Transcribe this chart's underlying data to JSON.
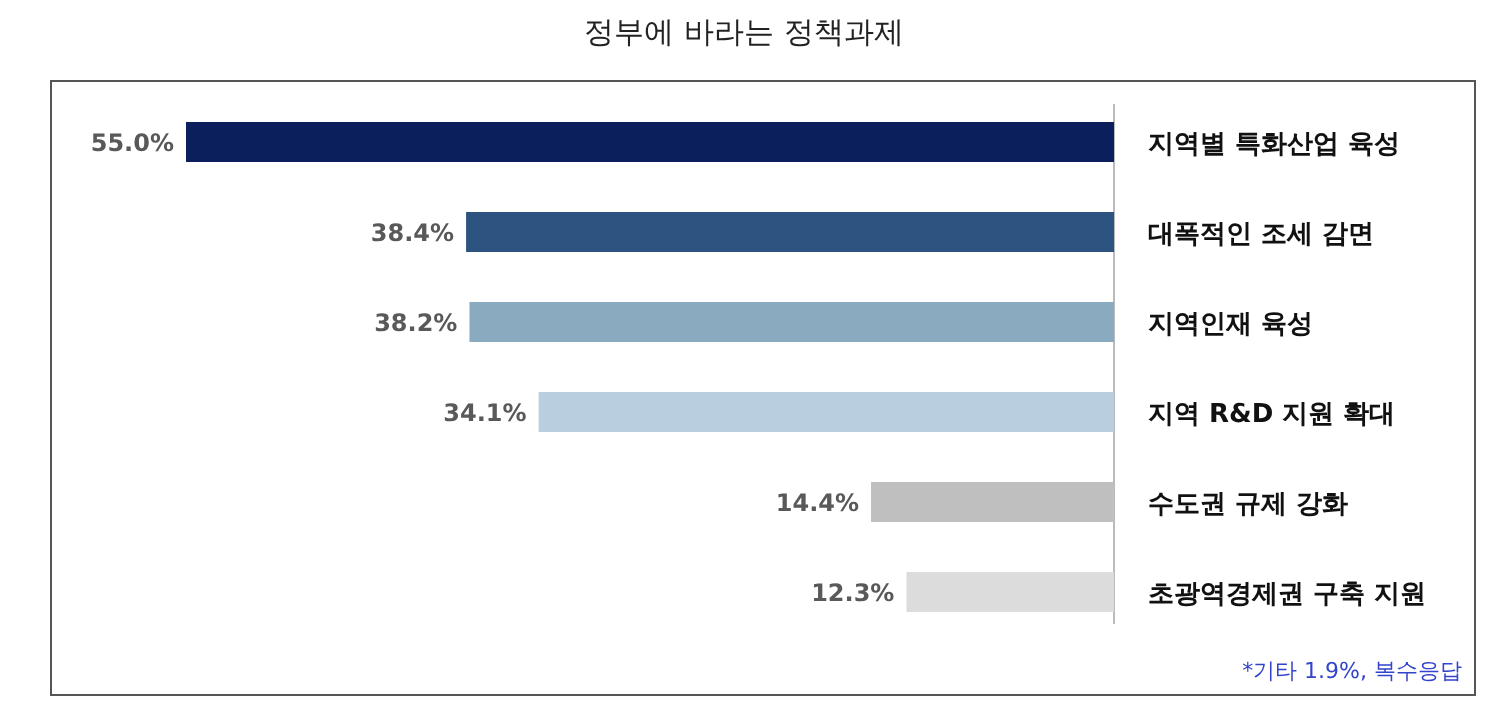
{
  "chart_data": {
    "type": "bar",
    "orientation": "horizontal",
    "title": "정부에 바라는 정책과제",
    "categories": [
      "지역별 특화산업 육성",
      "대폭적인 조세 감면",
      "지역인재 육성",
      "지역 R&D 지원 확대",
      "수도권 규제 강화",
      "초광역경제권 구축 지원"
    ],
    "values": [
      55.0,
      38.4,
      38.2,
      34.1,
      14.4,
      12.3
    ],
    "value_labels": [
      "55.0%",
      "38.4%",
      "38.2%",
      "34.1%",
      "14.4%",
      "12.3%"
    ],
    "colors": [
      "#0b1f5c",
      "#2d5380",
      "#8aaabf",
      "#b9cede",
      "#bfbfbf",
      "#dcdcdc"
    ],
    "annotations": [
      "*기타 1.9%, 복수응답"
    ]
  }
}
